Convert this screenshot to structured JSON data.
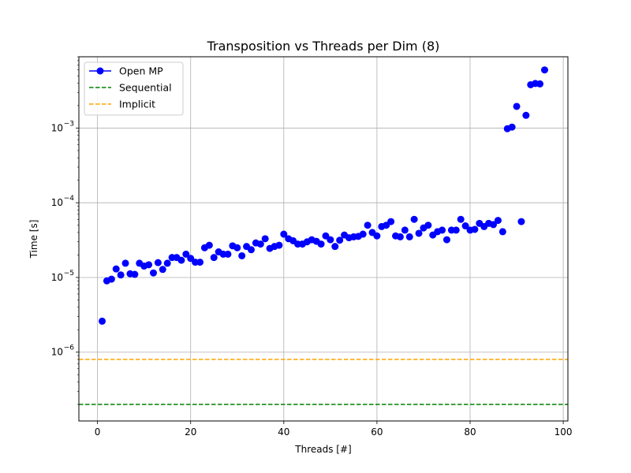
{
  "chart_data": {
    "type": "scatter",
    "title": "Transposition vs Threads per Dim (8)",
    "xlabel": "Threads [#]",
    "ylabel": "Time [s]",
    "xlim": [
      -4,
      101
    ],
    "ylim": [
      1.2e-07,
      0.009
    ],
    "yscale": "log",
    "xticks": [
      0,
      20,
      40,
      60,
      80,
      100
    ],
    "xtick_labels": [
      "0",
      "20",
      "40",
      "60",
      "80",
      "100"
    ],
    "yticks": [
      1e-06,
      1e-05,
      0.0001,
      0.001
    ],
    "ytick_labels": [
      [
        "10",
        "−6"
      ],
      [
        "10",
        "−5"
      ],
      [
        "10",
        "−4"
      ],
      [
        "10",
        "−3"
      ]
    ],
    "grid": true,
    "legend_position": "top-left",
    "series": [
      {
        "name": "Open MP",
        "kind": "markers",
        "color": "#0000ff",
        "x": [
          1,
          2,
          3,
          4,
          5,
          6,
          7,
          8,
          9,
          10,
          11,
          12,
          13,
          14,
          15,
          16,
          17,
          18,
          19,
          20,
          21,
          22,
          23,
          24,
          25,
          26,
          27,
          28,
          29,
          30,
          31,
          32,
          33,
          34,
          35,
          36,
          37,
          38,
          39,
          40,
          41,
          42,
          43,
          44,
          45,
          46,
          47,
          48,
          49,
          50,
          51,
          52,
          53,
          54,
          55,
          56,
          57,
          58,
          59,
          60,
          61,
          62,
          63,
          64,
          65,
          66,
          67,
          68,
          69,
          70,
          71,
          72,
          73,
          74,
          75,
          76,
          77,
          78,
          79,
          80,
          81,
          82,
          83,
          84,
          85,
          86,
          87,
          88,
          89,
          90,
          91,
          92,
          93,
          94,
          95,
          96
        ],
        "y": [
          2.6e-06,
          9e-06,
          9.5e-06,
          1.3e-05,
          1.08e-05,
          1.55e-05,
          1.12e-05,
          1.1e-05,
          1.55e-05,
          1.42e-05,
          1.48e-05,
          1.15e-05,
          1.58e-05,
          1.28e-05,
          1.55e-05,
          1.85e-05,
          1.85e-05,
          1.7e-05,
          2.05e-05,
          1.8e-05,
          1.6e-05,
          1.6e-05,
          2.5e-05,
          2.7e-05,
          1.85e-05,
          2.2e-05,
          2.05e-05,
          2.05e-05,
          2.65e-05,
          2.5e-05,
          1.95e-05,
          2.6e-05,
          2.35e-05,
          2.9e-05,
          2.8e-05,
          3.3e-05,
          2.45e-05,
          2.6e-05,
          2.7e-05,
          3.8e-05,
          3.3e-05,
          3.1e-05,
          2.8e-05,
          2.8e-05,
          3e-05,
          3.2e-05,
          3.05e-05,
          2.8e-05,
          3.6e-05,
          3.2e-05,
          2.6e-05,
          3.15e-05,
          3.7e-05,
          3.4e-05,
          3.5e-05,
          3.55e-05,
          3.8e-05,
          5e-05,
          4e-05,
          3.6e-05,
          4.8e-05,
          5e-05,
          5.6e-05,
          3.6e-05,
          3.5e-05,
          4.3e-05,
          3.5e-05,
          6e-05,
          3.9e-05,
          4.6e-05,
          5e-05,
          3.7e-05,
          4.1e-05,
          4.3e-05,
          3.2e-05,
          4.3e-05,
          4.3e-05,
          6e-05,
          4.9e-05,
          4.3e-05,
          4.4e-05,
          5.3e-05,
          4.8e-05,
          5.3e-05,
          5.1e-05,
          5.8e-05,
          4.1e-05,
          0.00098,
          0.00103,
          0.00195,
          5.6e-05,
          0.00148,
          0.0038,
          0.00395,
          0.0039,
          0.006
        ]
      },
      {
        "name": "Sequential",
        "kind": "hline",
        "color": "#008000",
        "y": 2e-07
      },
      {
        "name": "Implicit",
        "kind": "hline",
        "color": "#ffa500",
        "y": 8e-07
      }
    ]
  }
}
